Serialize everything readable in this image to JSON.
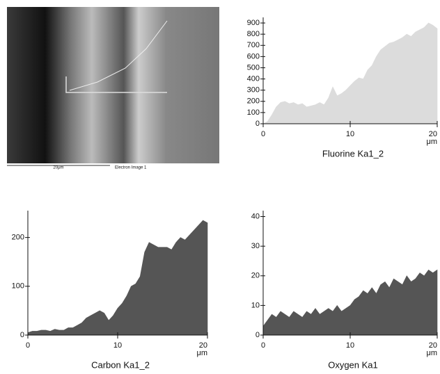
{
  "image": {
    "scale_label": "20μm",
    "caption": "Electron Image 1"
  },
  "chart_data": [
    {
      "type": "area",
      "title": "Fluorine Ka1_2",
      "xlabel": "μm",
      "color": "#dcdcdc",
      "x": [
        0,
        0.5,
        1,
        1.5,
        2,
        2.5,
        3,
        3.5,
        4,
        4.5,
        5,
        5.5,
        6,
        6.5,
        7,
        7.5,
        8,
        8.5,
        9,
        9.5,
        10,
        10.5,
        11,
        11.5,
        12,
        12.5,
        13,
        13.5,
        14,
        14.5,
        15,
        15.5,
        16,
        16.5,
        17,
        17.5,
        18,
        18.5,
        19,
        19.5,
        20
      ],
      "values": [
        0,
        20,
        80,
        150,
        190,
        200,
        180,
        190,
        170,
        180,
        150,
        160,
        170,
        190,
        170,
        230,
        330,
        250,
        270,
        300,
        340,
        380,
        410,
        400,
        480,
        520,
        600,
        660,
        690,
        720,
        730,
        750,
        770,
        800,
        780,
        820,
        840,
        860,
        900,
        880,
        850
      ],
      "xlim": [
        0,
        20
      ],
      "xticks": [
        0,
        10,
        20
      ],
      "ylim": [
        0,
        950
      ],
      "yticks": [
        0,
        100,
        200,
        300,
        400,
        500,
        600,
        700,
        800,
        900
      ]
    },
    {
      "type": "area",
      "title": "Carbon Ka1_2",
      "xlabel": "μm",
      "color": "#555555",
      "x": [
        0,
        0.5,
        1,
        1.5,
        2,
        2.5,
        3,
        3.5,
        4,
        4.5,
        5,
        5.5,
        6,
        6.5,
        7,
        7.5,
        8,
        8.5,
        9,
        9.5,
        10,
        10.5,
        11,
        11.5,
        12,
        12.5,
        13,
        13.5,
        14,
        14.5,
        15,
        15.5,
        16,
        16.5,
        17,
        17.5,
        18,
        18.5,
        19,
        19.5,
        20
      ],
      "values": [
        5,
        8,
        8,
        10,
        10,
        8,
        12,
        10,
        10,
        15,
        15,
        20,
        25,
        35,
        40,
        45,
        50,
        45,
        30,
        40,
        55,
        65,
        80,
        100,
        105,
        120,
        170,
        190,
        185,
        180,
        180,
        180,
        175,
        190,
        200,
        195,
        205,
        215,
        225,
        235,
        230
      ],
      "xlim": [
        0,
        20
      ],
      "xticks": [
        0,
        10,
        20
      ],
      "ylim": [
        0,
        255
      ],
      "yticks": [
        0,
        100,
        200
      ]
    },
    {
      "type": "area",
      "title": "Oxygen Ka1",
      "xlabel": "μm",
      "color": "#555555",
      "x": [
        0,
        0.5,
        1,
        1.5,
        2,
        2.5,
        3,
        3.5,
        4,
        4.5,
        5,
        5.5,
        6,
        6.5,
        7,
        7.5,
        8,
        8.5,
        9,
        9.5,
        10,
        10.5,
        11,
        11.5,
        12,
        12.5,
        13,
        13.5,
        14,
        14.5,
        15,
        15.5,
        16,
        16.5,
        17,
        17.5,
        18,
        18.5,
        19,
        19.5,
        20
      ],
      "values": [
        3,
        5,
        7,
        6,
        8,
        7,
        6,
        8,
        7,
        6,
        8,
        7,
        9,
        7,
        8,
        9,
        8,
        10,
        8,
        9,
        10,
        12,
        13,
        15,
        14,
        16,
        14,
        17,
        18,
        16,
        19,
        18,
        17,
        20,
        18,
        19,
        21,
        20,
        22,
        21,
        22
      ],
      "xlim": [
        0,
        20
      ],
      "xticks": [
        0,
        10,
        20
      ],
      "ylim": [
        0,
        42
      ],
      "yticks": [
        0,
        10,
        20,
        30,
        40
      ]
    }
  ]
}
